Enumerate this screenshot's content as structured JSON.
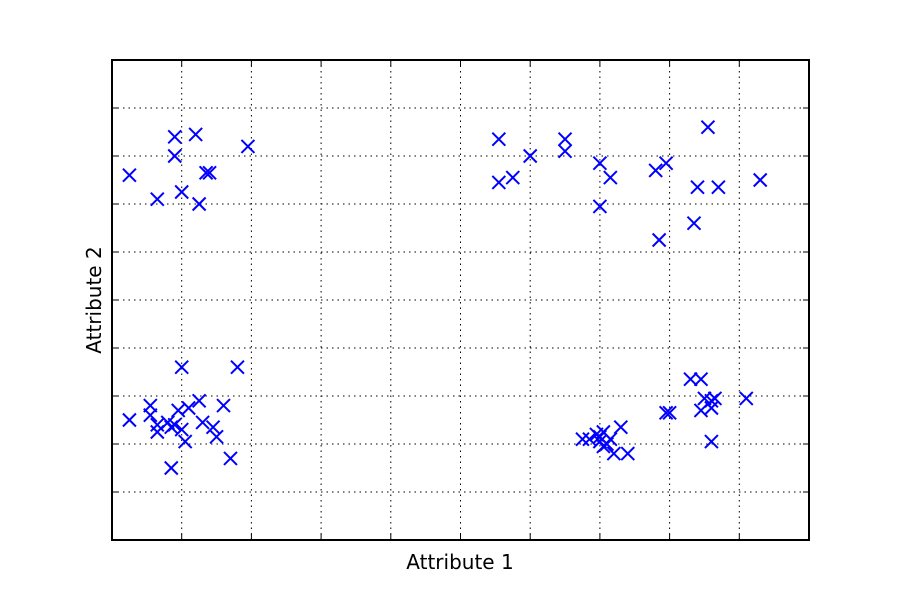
{
  "chart_data": {
    "type": "scatter",
    "title": "",
    "xlabel": "Attribute 1",
    "ylabel": "Attribute 2",
    "xlim": [
      0,
      10
    ],
    "ylim": [
      0,
      10
    ],
    "x_ticks": [
      1,
      2,
      3,
      4,
      5,
      6,
      7,
      8,
      9
    ],
    "y_ticks": [
      1,
      2,
      3,
      4,
      5,
      6,
      7,
      8,
      9
    ],
    "tick_labels_shown": false,
    "grid": true,
    "marker": "x",
    "color": "#0000ff",
    "series": [
      {
        "points": [
          [
            0.25,
            7.6
          ],
          [
            0.65,
            7.1
          ],
          [
            0.9,
            8.0
          ],
          [
            0.9,
            8.4
          ],
          [
            1.0,
            7.25
          ],
          [
            1.2,
            8.45
          ],
          [
            1.25,
            7.0
          ],
          [
            1.35,
            7.65
          ],
          [
            1.4,
            7.65
          ],
          [
            1.95,
            8.2
          ],
          [
            5.55,
            8.35
          ],
          [
            5.55,
            7.45
          ],
          [
            5.75,
            7.55
          ],
          [
            6.0,
            8.0
          ],
          [
            6.5,
            8.1
          ],
          [
            6.5,
            8.35
          ],
          [
            7.0,
            7.85
          ],
          [
            7.0,
            6.95
          ],
          [
            7.15,
            7.55
          ],
          [
            7.8,
            7.7
          ],
          [
            7.95,
            7.85
          ],
          [
            7.85,
            6.25
          ],
          [
            8.35,
            6.6
          ],
          [
            8.4,
            7.35
          ],
          [
            8.55,
            8.6
          ],
          [
            8.7,
            7.35
          ],
          [
            9.3,
            7.5
          ],
          [
            0.25,
            2.5
          ],
          [
            0.55,
            2.8
          ],
          [
            0.55,
            2.6
          ],
          [
            0.65,
            2.4
          ],
          [
            0.65,
            2.25
          ],
          [
            0.8,
            2.45
          ],
          [
            0.85,
            2.35
          ],
          [
            0.9,
            2.4
          ],
          [
            0.95,
            2.7
          ],
          [
            1.0,
            2.3
          ],
          [
            1.05,
            2.05
          ],
          [
            1.0,
            3.6
          ],
          [
            1.1,
            2.75
          ],
          [
            1.25,
            2.9
          ],
          [
            1.3,
            2.45
          ],
          [
            1.45,
            2.35
          ],
          [
            1.5,
            2.15
          ],
          [
            1.6,
            2.8
          ],
          [
            1.7,
            1.7
          ],
          [
            1.8,
            3.6
          ],
          [
            0.85,
            1.5
          ],
          [
            6.75,
            2.1
          ],
          [
            6.85,
            2.1
          ],
          [
            6.95,
            2.2
          ],
          [
            7.0,
            2.15
          ],
          [
            7.0,
            2.05
          ],
          [
            7.05,
            2.25
          ],
          [
            7.1,
            2.0
          ],
          [
            7.15,
            2.1
          ],
          [
            7.05,
            1.95
          ],
          [
            7.2,
            1.8
          ],
          [
            7.3,
            2.35
          ],
          [
            7.4,
            1.8
          ],
          [
            7.95,
            2.65
          ],
          [
            8.0,
            2.65
          ],
          [
            8.3,
            3.35
          ],
          [
            8.45,
            3.35
          ],
          [
            8.5,
            2.95
          ],
          [
            8.45,
            2.7
          ],
          [
            8.6,
            2.75
          ],
          [
            8.6,
            2.9
          ],
          [
            8.65,
            2.95
          ],
          [
            8.6,
            2.05
          ],
          [
            9.1,
            2.95
          ]
        ]
      }
    ]
  }
}
